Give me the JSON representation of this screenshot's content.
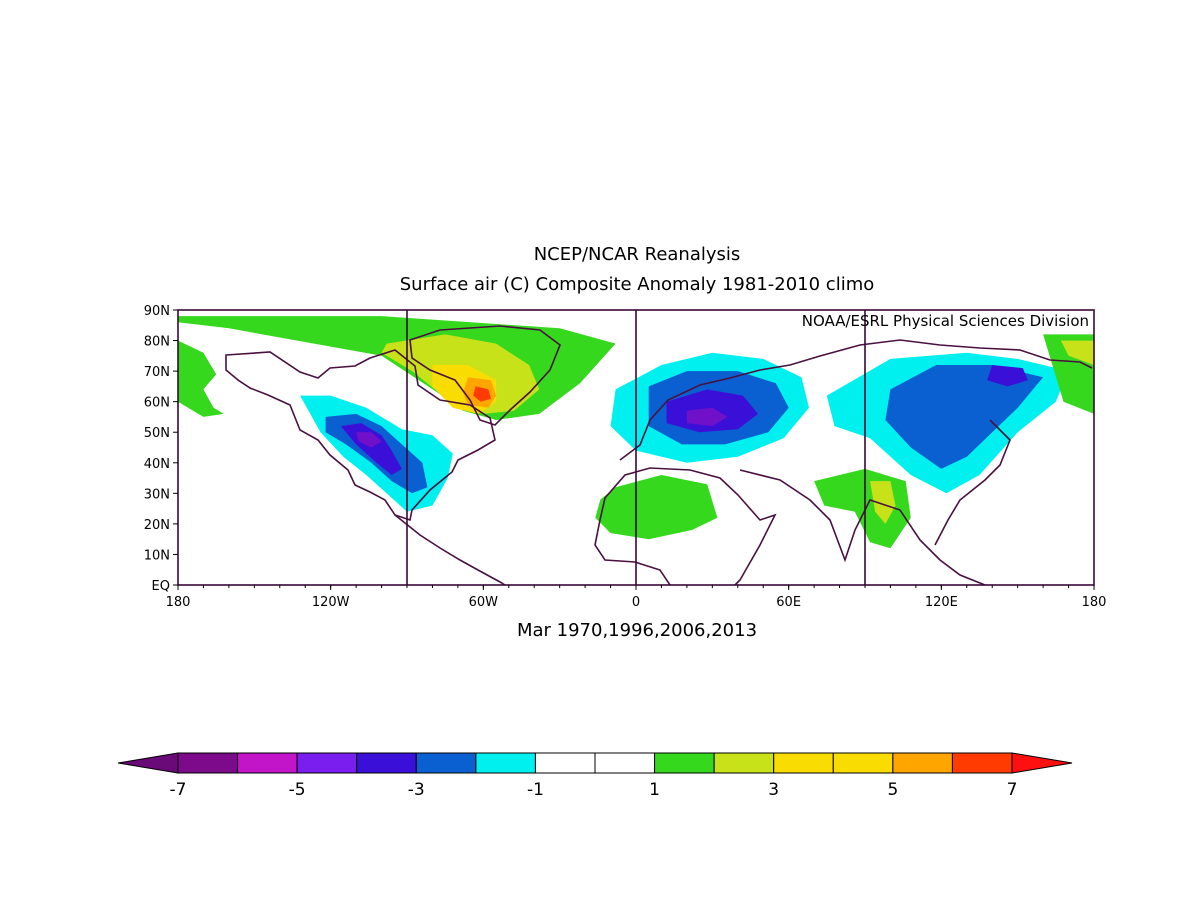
{
  "title": {
    "line1": "NCEP/NCAR Reanalysis",
    "line2": "Surface air (C) Composite Anomaly 1981-2010 climo"
  },
  "credit": "NOAA/ESRL Physical Sciences Division",
  "subtitle": "Mar 1970,1996,2006,2013",
  "map": {
    "lon_range": [
      -180,
      180
    ],
    "lat_range": [
      0,
      90
    ],
    "lon_ticks": [
      {
        "value": -180,
        "label": "180"
      },
      {
        "value": -120,
        "label": "120W"
      },
      {
        "value": -60,
        "label": "60W"
      },
      {
        "value": 0,
        "label": "0"
      },
      {
        "value": 60,
        "label": "60E"
      },
      {
        "value": 120,
        "label": "120E"
      },
      {
        "value": 180,
        "label": "180"
      }
    ],
    "lat_ticks": [
      {
        "value": 90,
        "label": "90N"
      },
      {
        "value": 80,
        "label": "80N"
      },
      {
        "value": 70,
        "label": "70N"
      },
      {
        "value": 60,
        "label": "60N"
      },
      {
        "value": 50,
        "label": "50N"
      },
      {
        "value": 40,
        "label": "40N"
      },
      {
        "value": 30,
        "label": "30N"
      },
      {
        "value": 20,
        "label": "20N"
      },
      {
        "value": 10,
        "label": "10N"
      },
      {
        "value": 0,
        "label": "EQ"
      }
    ],
    "meridian_lines": [
      -90,
      0,
      90
    ],
    "anomaly_regions": [
      {
        "name": "arctic-greenland-warm",
        "color": "#36d81e",
        "lonlat": [
          [
            -180,
            88
          ],
          [
            -100,
            88
          ],
          [
            -30,
            84
          ],
          [
            -8,
            79
          ],
          [
            -22,
            66
          ],
          [
            -38,
            56
          ],
          [
            -55,
            54
          ],
          [
            -68,
            57
          ],
          [
            -78,
            63
          ],
          [
            -100,
            75
          ],
          [
            -140,
            81
          ],
          [
            -160,
            84
          ],
          [
            -180,
            86
          ]
        ]
      },
      {
        "name": "baffin-warm",
        "color": "#c8e21a",
        "lonlat": [
          [
            -98,
            79
          ],
          [
            -75,
            82
          ],
          [
            -55,
            79
          ],
          [
            -42,
            72
          ],
          [
            -38,
            64
          ],
          [
            -48,
            57
          ],
          [
            -60,
            56
          ],
          [
            -73,
            60
          ],
          [
            -88,
            70
          ],
          [
            -100,
            76
          ]
        ]
      },
      {
        "name": "labrador-warm",
        "color": "#f8dc02",
        "lonlat": [
          [
            -80,
            72
          ],
          [
            -66,
            72
          ],
          [
            -55,
            67
          ],
          [
            -55,
            60
          ],
          [
            -62,
            56
          ],
          [
            -72,
            58
          ],
          [
            -80,
            65
          ]
        ]
      },
      {
        "name": "labrador-hot",
        "color": "#ffa500",
        "lonlat": [
          [
            -66,
            68
          ],
          [
            -57,
            67
          ],
          [
            -55,
            62
          ],
          [
            -58,
            58
          ],
          [
            -66,
            59
          ],
          [
            -68,
            63
          ]
        ]
      },
      {
        "name": "labrador-peak",
        "color": "#ff3b02",
        "lonlat": [
          [
            -63,
            65
          ],
          [
            -58,
            64
          ],
          [
            -57,
            61
          ],
          [
            -61,
            60
          ],
          [
            -64,
            62
          ]
        ]
      },
      {
        "name": "alaska-warm",
        "color": "#36d81e",
        "lonlat": [
          [
            -180,
            80
          ],
          [
            -170,
            76
          ],
          [
            -165,
            69
          ],
          [
            -170,
            64
          ],
          [
            -166,
            58
          ],
          [
            -162,
            56
          ],
          [
            -170,
            55
          ],
          [
            -180,
            60
          ]
        ]
      },
      {
        "name": "northamerica-cold",
        "color": "#00f0f0",
        "lonlat": [
          [
            -132,
            62
          ],
          [
            -120,
            62
          ],
          [
            -106,
            58
          ],
          [
            -92,
            51
          ],
          [
            -80,
            49
          ],
          [
            -72,
            43
          ],
          [
            -74,
            35
          ],
          [
            -80,
            26
          ],
          [
            -90,
            24
          ],
          [
            -98,
            30
          ],
          [
            -106,
            36
          ],
          [
            -115,
            42
          ],
          [
            -124,
            50
          ]
        ]
      },
      {
        "name": "northamerica-colder",
        "color": "#0a60d0",
        "lonlat": [
          [
            -122,
            55
          ],
          [
            -110,
            56
          ],
          [
            -100,
            52
          ],
          [
            -92,
            46
          ],
          [
            -84,
            40
          ],
          [
            -82,
            32
          ],
          [
            -88,
            30
          ],
          [
            -96,
            34
          ],
          [
            -104,
            40
          ],
          [
            -114,
            46
          ],
          [
            -122,
            50
          ]
        ]
      },
      {
        "name": "northamerica-coldest",
        "color": "#3a10d8",
        "lonlat": [
          [
            -116,
            52
          ],
          [
            -108,
            53
          ],
          [
            -100,
            49
          ],
          [
            -96,
            44
          ],
          [
            -92,
            38
          ],
          [
            -96,
            36
          ],
          [
            -102,
            40
          ],
          [
            -110,
            46
          ]
        ]
      },
      {
        "name": "northamerica-core",
        "color": "#7010c8",
        "lonlat": [
          [
            -110,
            50
          ],
          [
            -104,
            50
          ],
          [
            -100,
            47
          ],
          [
            -104,
            45
          ],
          [
            -109,
            47
          ]
        ]
      },
      {
        "name": "europe-cold",
        "color": "#00f0f0",
        "lonlat": [
          [
            -8,
            64
          ],
          [
            10,
            72
          ],
          [
            30,
            76
          ],
          [
            50,
            74
          ],
          [
            65,
            68
          ],
          [
            68,
            58
          ],
          [
            58,
            48
          ],
          [
            40,
            42
          ],
          [
            20,
            40
          ],
          [
            0,
            44
          ],
          [
            -10,
            52
          ]
        ]
      },
      {
        "name": "europe-colder",
        "color": "#0a60d0",
        "lonlat": [
          [
            5,
            65
          ],
          [
            20,
            70
          ],
          [
            40,
            70
          ],
          [
            55,
            66
          ],
          [
            60,
            58
          ],
          [
            52,
            50
          ],
          [
            35,
            46
          ],
          [
            18,
            46
          ],
          [
            5,
            52
          ]
        ]
      },
      {
        "name": "europe-coldest",
        "color": "#3a10d8",
        "lonlat": [
          [
            12,
            60
          ],
          [
            28,
            64
          ],
          [
            42,
            62
          ],
          [
            48,
            56
          ],
          [
            40,
            51
          ],
          [
            25,
            50
          ],
          [
            12,
            53
          ]
        ]
      },
      {
        "name": "europe-core",
        "color": "#7010c8",
        "lonlat": [
          [
            20,
            57
          ],
          [
            30,
            58
          ],
          [
            36,
            55
          ],
          [
            30,
            52
          ],
          [
            20,
            53
          ]
        ]
      },
      {
        "name": "asia-cold",
        "color": "#00f0f0",
        "lonlat": [
          [
            75,
            62
          ],
          [
            100,
            74
          ],
          [
            130,
            76
          ],
          [
            150,
            74
          ],
          [
            170,
            70
          ],
          [
            165,
            60
          ],
          [
            150,
            50
          ],
          [
            135,
            36
          ],
          [
            122,
            30
          ],
          [
            108,
            36
          ],
          [
            92,
            48
          ],
          [
            78,
            52
          ]
        ]
      },
      {
        "name": "asia-colder",
        "color": "#0a60d0",
        "lonlat": [
          [
            100,
            64
          ],
          [
            118,
            72
          ],
          [
            140,
            72
          ],
          [
            160,
            68
          ],
          [
            150,
            58
          ],
          [
            140,
            50
          ],
          [
            130,
            42
          ],
          [
            120,
            38
          ],
          [
            108,
            45
          ],
          [
            98,
            54
          ]
        ]
      },
      {
        "name": "asia-coldest",
        "color": "#3a10d8",
        "lonlat": [
          [
            140,
            72
          ],
          [
            152,
            71
          ],
          [
            154,
            67
          ],
          [
            146,
            65
          ],
          [
            138,
            67
          ]
        ]
      },
      {
        "name": "north-africa-warm",
        "color": "#36d81e",
        "lonlat": [
          [
            -8,
            32
          ],
          [
            10,
            36
          ],
          [
            28,
            33
          ],
          [
            32,
            22
          ],
          [
            22,
            18
          ],
          [
            5,
            15
          ],
          [
            -10,
            17
          ],
          [
            -16,
            22
          ],
          [
            -14,
            28
          ]
        ]
      },
      {
        "name": "south-asia-warm",
        "color": "#36d81e",
        "lonlat": [
          [
            70,
            34
          ],
          [
            90,
            38
          ],
          [
            106,
            34
          ],
          [
            108,
            22
          ],
          [
            100,
            12
          ],
          [
            92,
            14
          ],
          [
            86,
            24
          ],
          [
            74,
            26
          ]
        ]
      },
      {
        "name": "south-asia-warmer",
        "color": "#c8e21a",
        "lonlat": [
          [
            92,
            34
          ],
          [
            100,
            34
          ],
          [
            102,
            26
          ],
          [
            98,
            20
          ],
          [
            94,
            24
          ]
        ]
      },
      {
        "name": "pacific-warm",
        "color": "#36d81e",
        "lonlat": [
          [
            160,
            82
          ],
          [
            180,
            82
          ],
          [
            180,
            56
          ],
          [
            168,
            60
          ]
        ]
      },
      {
        "name": "pacific-warmer",
        "color": "#c8e21a",
        "lonlat": [
          [
            167,
            80
          ],
          [
            180,
            80
          ],
          [
            180,
            72
          ],
          [
            170,
            75
          ]
        ]
      }
    ]
  },
  "colorbar": {
    "colors": [
      "#6a0a78",
      "#7c0a8a",
      "#c214c8",
      "#7a1ef0",
      "#3a10d8",
      "#0a60d0",
      "#00f0f0",
      "#ffffff",
      "#ffffff",
      "#36d81e",
      "#c8e21a",
      "#f8dc02",
      "#f8dc02",
      "#ffa500",
      "#ff3b02",
      "#ff1010"
    ],
    "labels": [
      "-7",
      "-5",
      "-3",
      "-1",
      "1",
      "3",
      "5",
      "7"
    ]
  }
}
